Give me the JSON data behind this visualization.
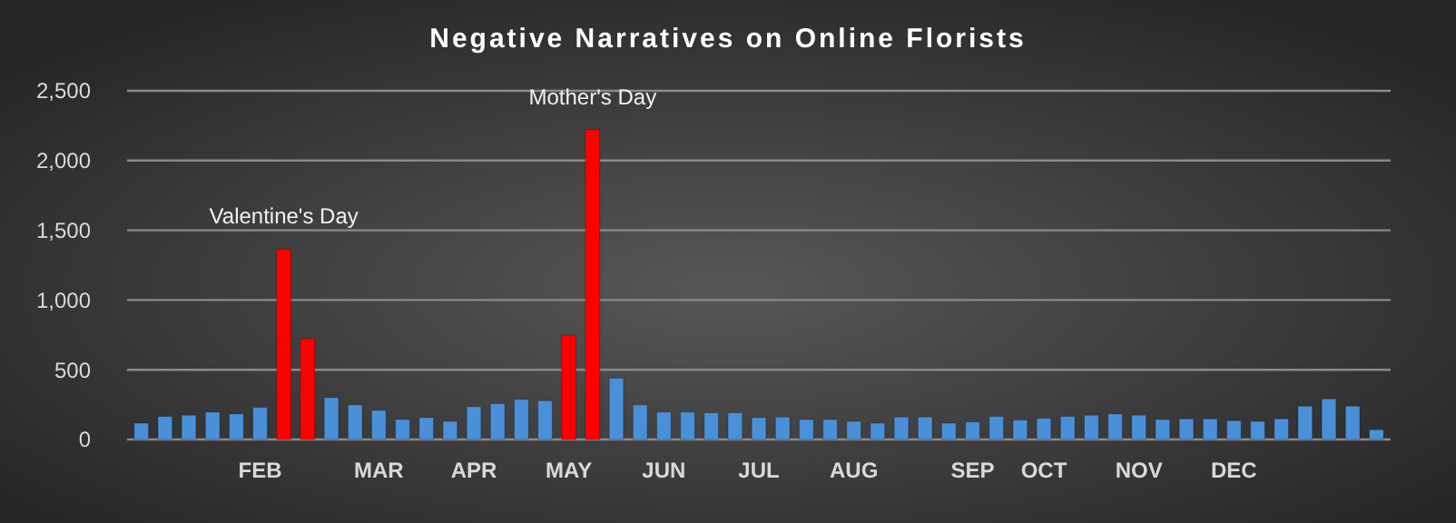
{
  "chart_data": {
    "type": "bar",
    "title": "Negative Narratives on Online Florists",
    "categories": [
      null,
      null,
      null,
      null,
      null,
      "FEB",
      null,
      null,
      null,
      null,
      "MAR",
      null,
      null,
      null,
      "APR",
      null,
      null,
      null,
      "MAY",
      null,
      null,
      null,
      "JUN",
      null,
      null,
      null,
      "JUL",
      null,
      null,
      null,
      "AUG",
      null,
      null,
      null,
      null,
      "SEP",
      null,
      null,
      "OCT",
      null,
      null,
      null,
      "NOV",
      null,
      null,
      null,
      "DEC",
      null,
      null,
      null,
      null,
      null,
      null
    ],
    "values": [
      117,
      165,
      174,
      196,
      183,
      230,
      1365,
      722,
      300,
      248,
      209,
      143,
      157,
      130,
      235,
      257,
      287,
      278,
      748,
      2222,
      439,
      248,
      196,
      196,
      191,
      191,
      157,
      161,
      143,
      143,
      130,
      117,
      161,
      161,
      117,
      126,
      165,
      139,
      152,
      165,
      174,
      183,
      174,
      143,
      148,
      148,
      135,
      130,
      148,
      239,
      291,
      239,
      70
    ],
    "colors": [
      "#4a90d9",
      "#4a90d9",
      "#4a90d9",
      "#4a90d9",
      "#4a90d9",
      "#4a90d9",
      "#ff0000",
      "#ff0000",
      "#4a90d9",
      "#4a90d9",
      "#4a90d9",
      "#4a90d9",
      "#4a90d9",
      "#4a90d9",
      "#4a90d9",
      "#4a90d9",
      "#4a90d9",
      "#4a90d9",
      "#ff0000",
      "#ff0000",
      "#4a90d9",
      "#4a90d9",
      "#4a90d9",
      "#4a90d9",
      "#4a90d9",
      "#4a90d9",
      "#4a90d9",
      "#4a90d9",
      "#4a90d9",
      "#4a90d9",
      "#4a90d9",
      "#4a90d9",
      "#4a90d9",
      "#4a90d9",
      "#4a90d9",
      "#4a90d9",
      "#4a90d9",
      "#4a90d9",
      "#4a90d9",
      "#4a90d9",
      "#4a90d9",
      "#4a90d9",
      "#4a90d9",
      "#4a90d9",
      "#4a90d9",
      "#4a90d9",
      "#4a90d9",
      "#4a90d9",
      "#4a90d9",
      "#4a90d9",
      "#4a90d9",
      "#4a90d9",
      "#4a90d9"
    ],
    "ylim": [
      0,
      2500
    ],
    "yticks": [
      0,
      500,
      {
        "value": 1000,
        "label": "1,000"
      },
      {
        "value": 1500,
        "label": "1,500"
      },
      {
        "value": 2000,
        "label": "2,000"
      },
      {
        "value": 2500,
        "label": "2,500"
      }
    ],
    "grid": "y",
    "annotations": [
      {
        "text": "Valentine's Day",
        "y": 1365
      },
      {
        "text": "Mother's Day",
        "y": 2222
      }
    ]
  }
}
